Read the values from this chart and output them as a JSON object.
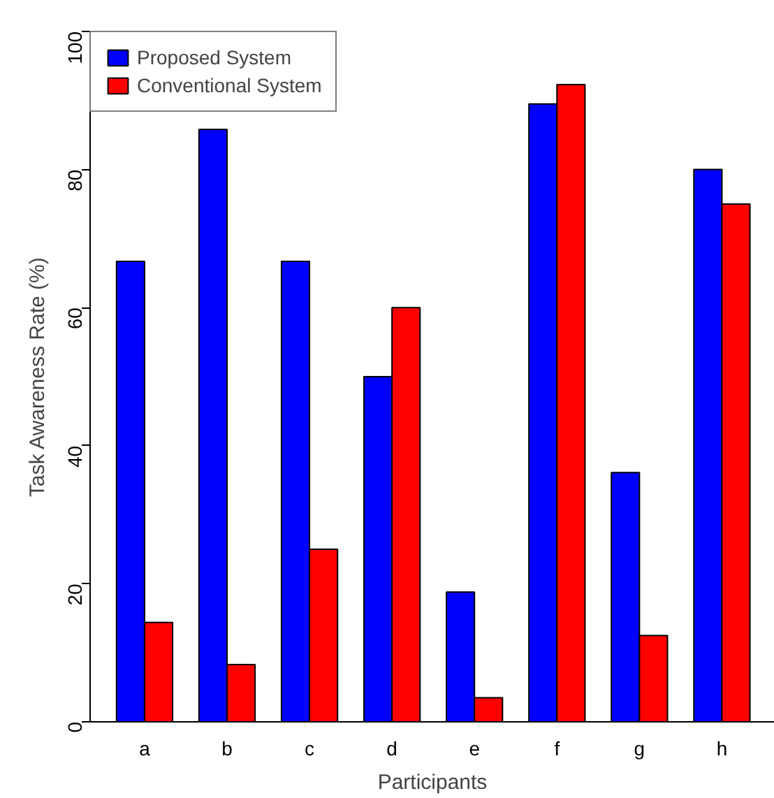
{
  "chart_data": {
    "type": "bar",
    "xlabel": "Participants",
    "ylabel": "Task Awareness Rate (%)",
    "categories": [
      "a",
      "b",
      "c",
      "d",
      "e",
      "f",
      "g",
      "h"
    ],
    "series": [
      {
        "name": "Proposed System",
        "color": "#0000ff",
        "values": [
          66.7,
          85.8,
          66.7,
          50.0,
          18.8,
          89.5,
          36.1,
          80.0
        ]
      },
      {
        "name": "Conventional System",
        "color": "#ff0000",
        "values": [
          14.4,
          8.3,
          25.0,
          60.0,
          3.5,
          92.3,
          12.5,
          75.0
        ]
      }
    ],
    "ylim": [
      0,
      100
    ],
    "yticks": [
      0,
      20,
      40,
      60,
      80,
      100
    ],
    "grid": false,
    "legend": "top left"
  }
}
